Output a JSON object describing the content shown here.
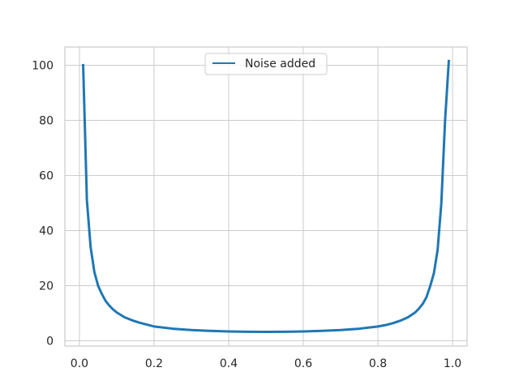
{
  "chart_data": {
    "type": "line",
    "title": "",
    "xlabel": "",
    "ylabel": "",
    "xlim": [
      -0.039,
      1.039
    ],
    "ylim": [
      -1.9,
      106.6
    ],
    "xticks": [
      0.0,
      0.2,
      0.4,
      0.6,
      0.8,
      1.0
    ],
    "xtick_labels": [
      "0.0",
      "0.2",
      "0.4",
      "0.6",
      "0.8",
      "1.0"
    ],
    "yticks": [
      0,
      20,
      40,
      60,
      80,
      100
    ],
    "ytick_labels": [
      "0",
      "20",
      "40",
      "60",
      "80",
      "100"
    ],
    "grid": true,
    "legend_position": "upper center",
    "series": [
      {
        "name": "Noise added",
        "color": "#1f77b4",
        "x": [
          0.01,
          0.02,
          0.03,
          0.04,
          0.05,
          0.06,
          0.07,
          0.08,
          0.09,
          0.1,
          0.12,
          0.14,
          0.16,
          0.18,
          0.2,
          0.25,
          0.3,
          0.35,
          0.4,
          0.45,
          0.5,
          0.55,
          0.6,
          0.65,
          0.7,
          0.75,
          0.8,
          0.82,
          0.84,
          0.86,
          0.88,
          0.9,
          0.91,
          0.92,
          0.93,
          0.94,
          0.95,
          0.96,
          0.97,
          0.98,
          0.99
        ],
        "y": [
          100.0,
          51.0,
          34.0,
          25.0,
          20.0,
          17.0,
          14.5,
          12.8,
          11.4,
          10.3,
          8.6,
          7.5,
          6.6,
          5.9,
          5.2,
          4.4,
          3.9,
          3.6,
          3.4,
          3.3,
          3.25,
          3.3,
          3.4,
          3.6,
          3.9,
          4.4,
          5.2,
          5.7,
          6.4,
          7.3,
          8.5,
          10.3,
          11.7,
          13.4,
          15.8,
          19.8,
          24.5,
          33.0,
          50.0,
          80.0,
          101.5
        ]
      }
    ]
  }
}
